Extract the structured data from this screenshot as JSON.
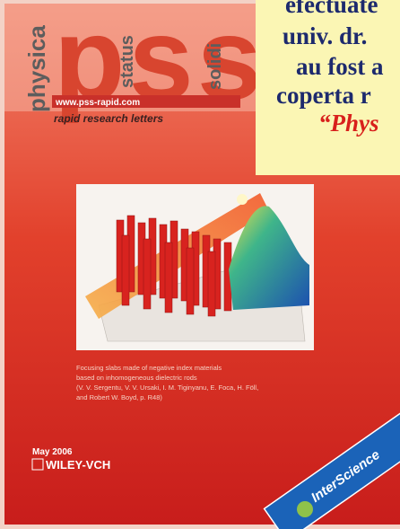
{
  "cover": {
    "brand": {
      "physica": "physica",
      "pss": "pss",
      "status": "status",
      "solidi": "solidi"
    },
    "url": "www.pss-rapid.com",
    "subtitle": "rapid research letters",
    "caption": [
      "Focusing slabs made of negative index materials",
      "based on inhomogeneous dielectric rods",
      "(V. V. Sergentu, V. V. Ursaki, I. M. Tiginyanu, E. Foca, H. Föll,",
      "and Robert W. Boyd, p. R48)"
    ],
    "date": "May 2006",
    "publisher": "WILEY-VCH",
    "badge": "InterScience"
  },
  "overlay": {
    "lines": [
      "efectuate",
      "univ. dr.",
      "au fost a",
      "coperta r",
      "“Phys"
    ]
  }
}
